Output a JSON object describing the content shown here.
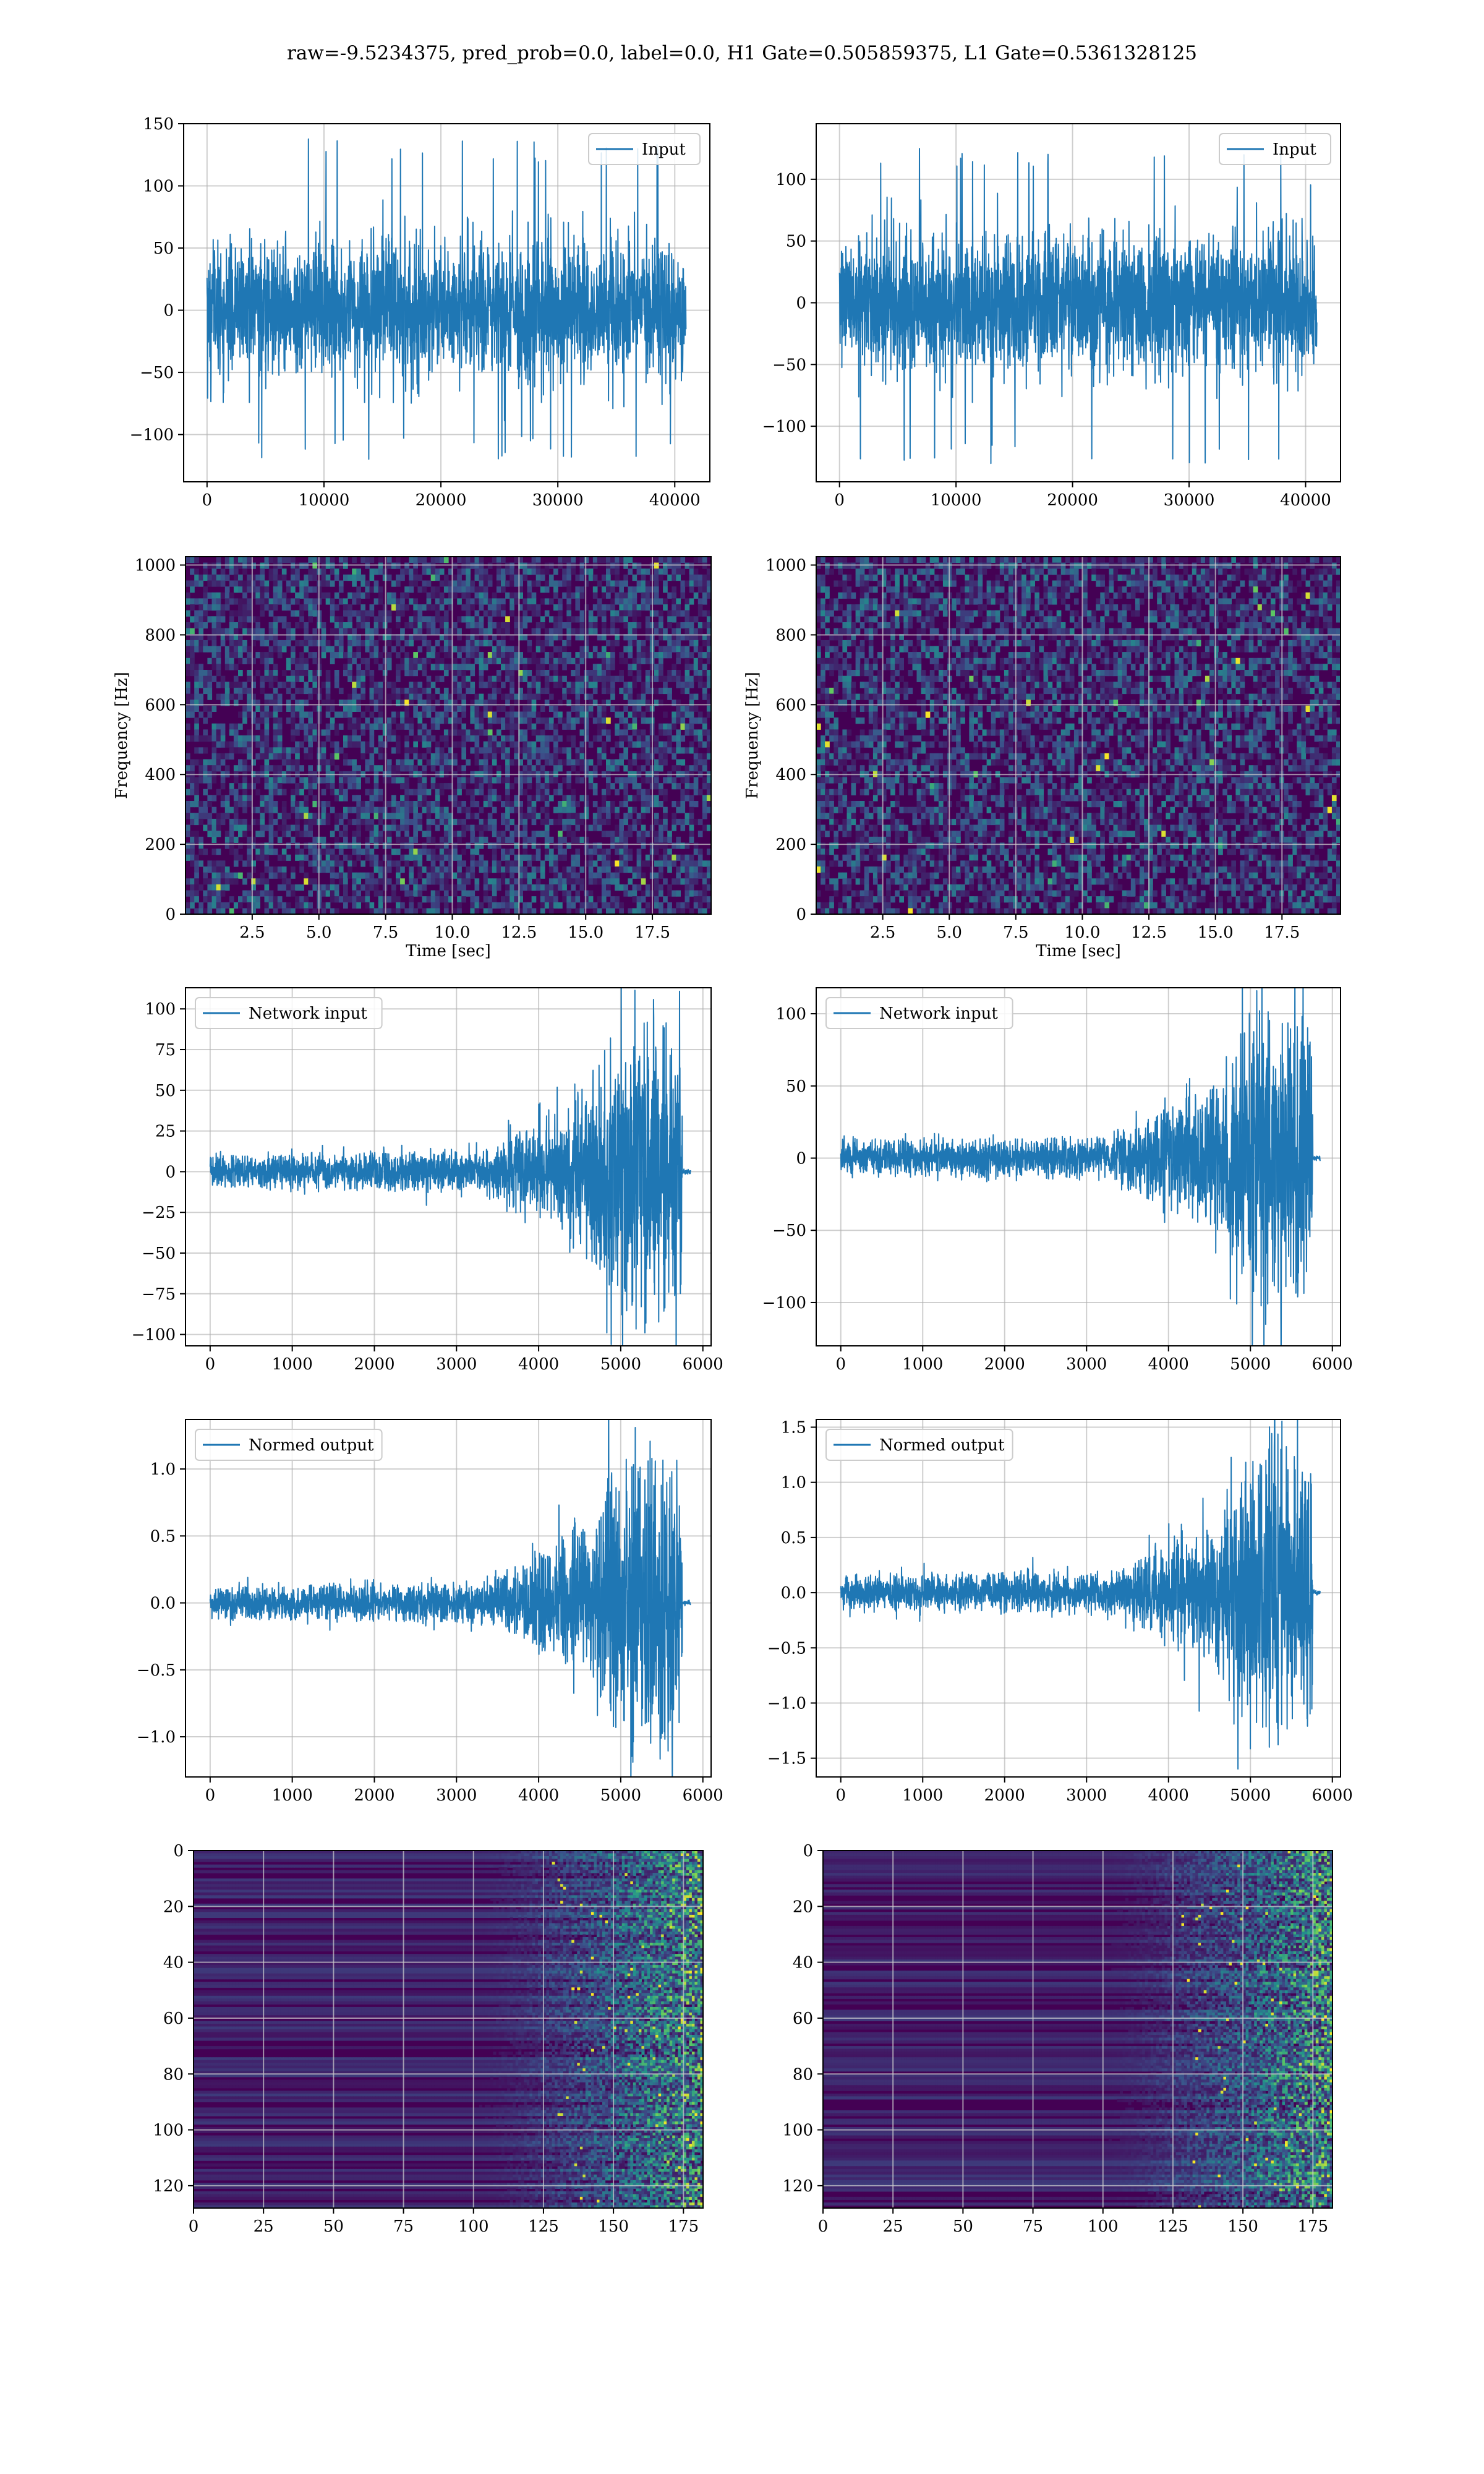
{
  "figure": {
    "title": "raw=-9.5234375, pred_prob=0.0, label=0.0, H1 Gate=0.505859375, L1 Gate=0.5361328125",
    "colors": {
      "line": "#1f77b4",
      "grid": "#b0b0b0",
      "viridis_dark": "#440154",
      "viridis_mid": "#21918c",
      "viridis_bright": "#fde725"
    }
  },
  "chart_data": [
    {
      "type": "line",
      "title": "",
      "legend": "Input",
      "legend_loc": "upper right",
      "grid": true,
      "xlim": [
        -2000,
        43000
      ],
      "ylim": [
        -138,
        150
      ],
      "xticks": [
        0,
        10000,
        20000,
        30000,
        40000
      ],
      "yticks": [
        -100,
        -50,
        0,
        50,
        100,
        150
      ],
      "signal": {
        "kind": "noise",
        "x_range": [
          0,
          40960
        ],
        "amplitude_range": [
          -120,
          138
        ]
      }
    },
    {
      "type": "line",
      "title": "",
      "legend": "Input",
      "legend_loc": "upper right",
      "grid": true,
      "xlim": [
        -2000,
        43000
      ],
      "ylim": [
        -145,
        145
      ],
      "xticks": [
        0,
        10000,
        20000,
        30000,
        40000
      ],
      "yticks": [
        -100,
        -50,
        0,
        50,
        100
      ],
      "signal": {
        "kind": "noise",
        "x_range": [
          0,
          40960
        ],
        "amplitude_range": [
          -132,
          128
        ]
      }
    },
    {
      "type": "heatmap",
      "title": "",
      "xlabel": "Time [sec]",
      "ylabel": "Frequency [Hz]",
      "grid": true,
      "xlim": [
        0,
        19.7
      ],
      "ylim": [
        0,
        1024
      ],
      "xticks": [
        2.5,
        5.0,
        7.5,
        10.0,
        12.5,
        15.0,
        17.5
      ],
      "yticks": [
        0,
        200,
        400,
        600,
        800,
        1000
      ],
      "colormap": "viridis"
    },
    {
      "type": "heatmap",
      "title": "",
      "xlabel": "Time [sec]",
      "ylabel": "Frequency [Hz]",
      "grid": true,
      "xlim": [
        0,
        19.7
      ],
      "ylim": [
        0,
        1024
      ],
      "xticks": [
        2.5,
        5.0,
        7.5,
        10.0,
        12.5,
        15.0,
        17.5
      ],
      "yticks": [
        0,
        200,
        400,
        600,
        800,
        1000
      ],
      "colormap": "viridis"
    },
    {
      "type": "line",
      "title": "",
      "legend": "Network input",
      "legend_loc": "upper left",
      "grid": true,
      "xlim": [
        -300,
        6100
      ],
      "ylim": [
        -107,
        113
      ],
      "xticks": [
        0,
        1000,
        2000,
        3000,
        4000,
        5000,
        6000
      ],
      "yticks": [
        -100,
        -75,
        -50,
        -25,
        0,
        25,
        50,
        75,
        100
      ],
      "signal": {
        "kind": "chirp",
        "x_range": [
          0,
          5850
        ],
        "base_amplitude": 10,
        "peak_amplitude": 100,
        "peak_x": 4950,
        "end_x": 5750,
        "tail_end_x": 5850
      }
    },
    {
      "type": "line",
      "title": "",
      "legend": "Network input",
      "legend_loc": "upper left",
      "grid": true,
      "xlim": [
        -300,
        6100
      ],
      "ylim": [
        -130,
        118
      ],
      "xticks": [
        0,
        1000,
        2000,
        3000,
        4000,
        5000,
        6000
      ],
      "yticks": [
        -100,
        -50,
        0,
        50,
        100
      ],
      "signal": {
        "kind": "chirp",
        "x_range": [
          0,
          5850
        ],
        "base_amplitude": 12,
        "peak_amplitude": 115,
        "peak_x": 5000,
        "end_x": 5760,
        "tail_end_x": 5850
      }
    },
    {
      "type": "line",
      "title": "",
      "legend": "Normed output",
      "legend_loc": "upper left",
      "grid": true,
      "xlim": [
        -300,
        6100
      ],
      "ylim": [
        -1.3,
        1.37
      ],
      "xticks": [
        0,
        1000,
        2000,
        3000,
        4000,
        5000,
        6000
      ],
      "yticks": [
        -1.0,
        -0.5,
        0.0,
        0.5,
        1.0
      ],
      "signal": {
        "kind": "chirp",
        "x_range": [
          0,
          5850
        ],
        "base_amplitude": 0.12,
        "peak_amplitude": 1.25,
        "peak_x": 4950,
        "end_x": 5750,
        "tail_end_x": 5850
      }
    },
    {
      "type": "line",
      "title": "",
      "legend": "Normed output",
      "legend_loc": "upper left",
      "grid": true,
      "xlim": [
        -300,
        6100
      ],
      "ylim": [
        -1.67,
        1.57
      ],
      "xticks": [
        0,
        1000,
        2000,
        3000,
        4000,
        5000,
        6000
      ],
      "yticks": [
        -1.5,
        -1.0,
        -0.5,
        0.0,
        0.5,
        1.0,
        1.5
      ],
      "signal": {
        "kind": "chirp",
        "x_range": [
          0,
          5850
        ],
        "base_amplitude": 0.15,
        "peak_amplitude": 1.45,
        "peak_x": 5000,
        "end_x": 5760,
        "tail_end_x": 5850
      }
    },
    {
      "type": "heatmap",
      "title": "",
      "grid": true,
      "xlim": [
        0,
        182
      ],
      "ylim": [
        128,
        0
      ],
      "xticks": [
        0,
        25,
        50,
        75,
        100,
        125,
        150,
        175
      ],
      "yticks": [
        0,
        20,
        40,
        60,
        80,
        100,
        120
      ],
      "colormap": "viridis"
    },
    {
      "type": "heatmap",
      "title": "",
      "grid": true,
      "xlim": [
        0,
        182
      ],
      "ylim": [
        128,
        0
      ],
      "xticks": [
        0,
        25,
        50,
        75,
        100,
        125,
        150,
        175
      ],
      "yticks": [
        0,
        20,
        40,
        60,
        80,
        100,
        120
      ],
      "colormap": "viridis"
    }
  ]
}
